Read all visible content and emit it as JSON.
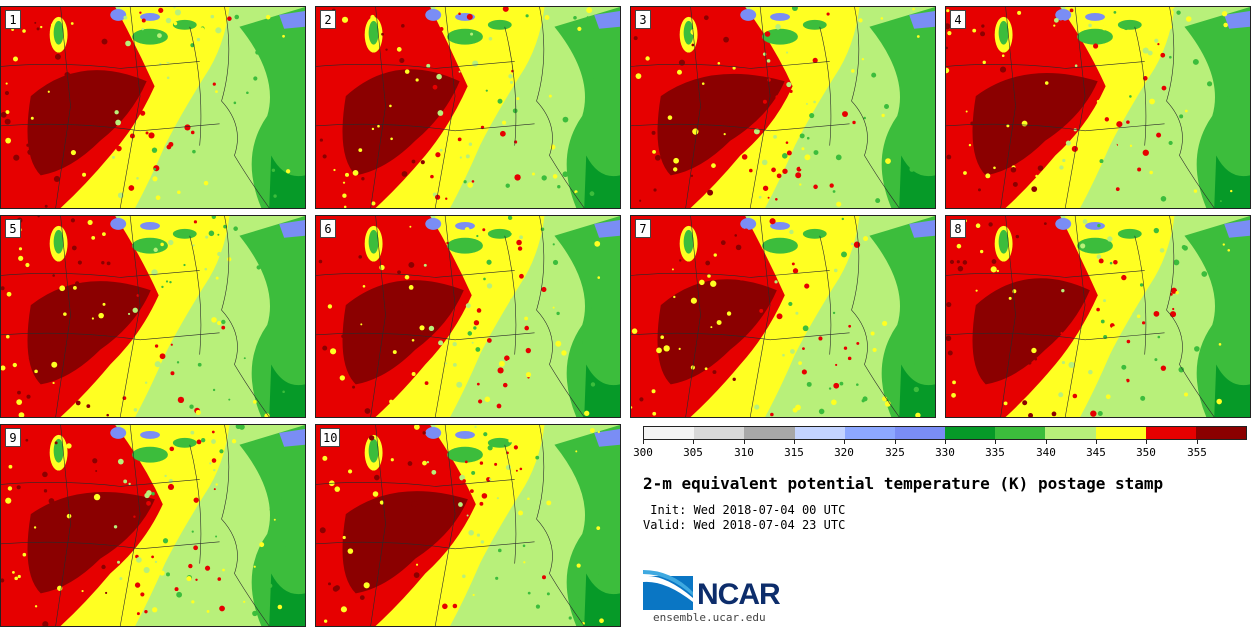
{
  "panels": [
    {
      "label": "1"
    },
    {
      "label": "2"
    },
    {
      "label": "3"
    },
    {
      "label": "4"
    },
    {
      "label": "5"
    },
    {
      "label": "6"
    },
    {
      "label": "7"
    },
    {
      "label": "8"
    },
    {
      "label": "9"
    },
    {
      "label": "10"
    }
  ],
  "colorbar": {
    "levels": [
      300,
      305,
      310,
      315,
      320,
      325,
      330,
      335,
      340,
      345,
      350,
      355,
      360
    ],
    "tick_labels": [
      "300",
      "305",
      "310",
      "315",
      "320",
      "325",
      "330",
      "335",
      "340",
      "345",
      "350",
      "355"
    ],
    "colors": [
      "#f4f4f4",
      "#d8d8d8",
      "#a8a8a8",
      "#c4d4ff",
      "#8da8ff",
      "#7a8df5",
      "#069a28",
      "#3cbd3c",
      "#b8f07a",
      "#ffff22",
      "#e60000",
      "#8b0000"
    ]
  },
  "title": "2-m equivalent potential temperature (K) postage stamp",
  "init": " Init: Wed 2018-07-04 00 UTC",
  "valid": "Valid: Wed 2018-07-04 23 UTC",
  "logo": {
    "text": "NCAR",
    "icon": "ncar-logo-icon"
  },
  "website": "ensemble.ucar.edu"
}
